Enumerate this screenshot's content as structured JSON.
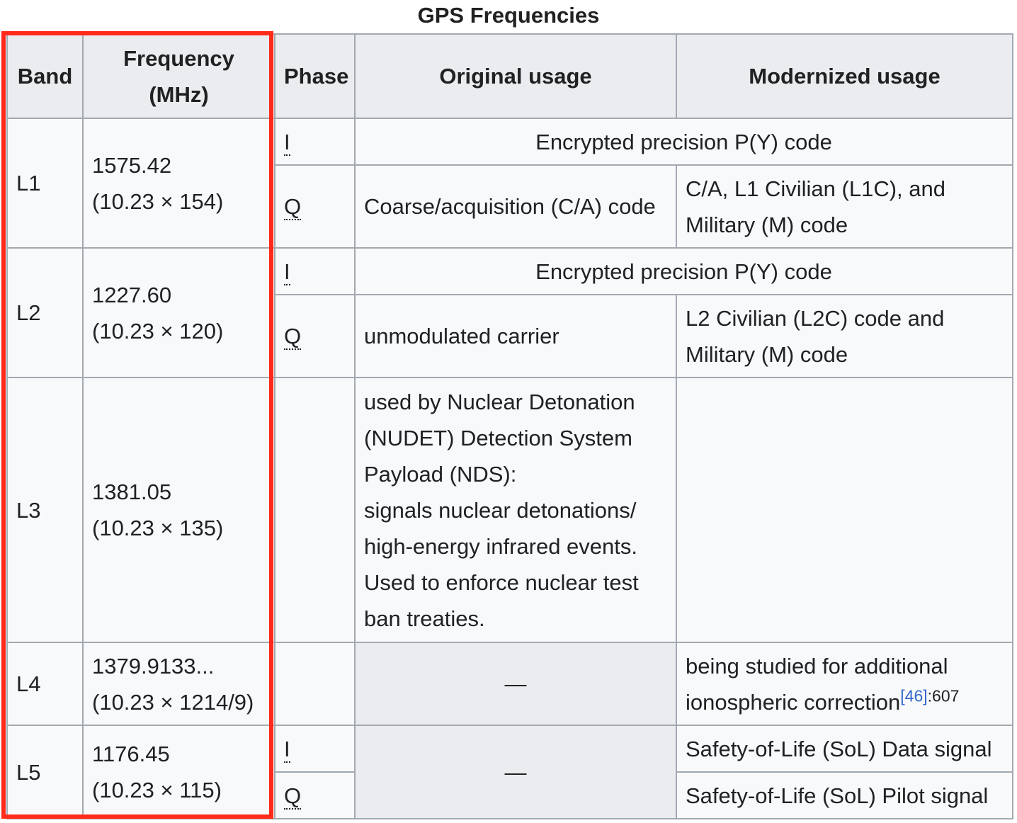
{
  "caption": "GPS Frequencies",
  "headers": {
    "band": "Band",
    "frequency": "Frequency (MHz)",
    "phase": "Phase",
    "original": "Original usage",
    "modernized": "Modernized usage"
  },
  "rows": {
    "l1": {
      "band": "L1",
      "freq_value": "1575.42",
      "freq_formula": "(10.23 × 154)",
      "phase_i": "I",
      "phase_q": "Q",
      "i_usage": "Encrypted precision P(Y) code",
      "q_original": "Coarse/acquisition (C/A) code",
      "q_modernized": "C/A, L1 Civilian (L1C), and Military (M) code"
    },
    "l2": {
      "band": "L2",
      "freq_value": "1227.60",
      "freq_formula": "(10.23 × 120)",
      "phase_i": "I",
      "phase_q": "Q",
      "i_usage": "Encrypted precision P(Y) code",
      "q_original": "unmodulated carrier",
      "q_modernized": "L2 Civilian (L2C) code and Military (M) code"
    },
    "l3": {
      "band": "L3",
      "freq_value": "1381.05",
      "freq_formula": "(10.23 × 135)",
      "original_line1": "used by Nuclear Detonation (NUDET) Detection System Payload (NDS):",
      "original_line2": "signals nuclear detonations/ high-energy infrared events.",
      "original_line3": "Used to enforce nuclear test ban treaties."
    },
    "l4": {
      "band": "L4",
      "freq_value": "1379.9133...",
      "freq_formula": "(10.23 × 1214/9)",
      "original": "—",
      "modernized": "being studied for additional ionospheric correction",
      "ref": "[46]",
      "page": ":607"
    },
    "l5": {
      "band": "L5",
      "freq_value": "1176.45",
      "freq_formula": "(10.23 × 115)",
      "phase_i": "I",
      "phase_q": "Q",
      "original": "—",
      "i_modernized": "Safety-of-Life (SoL) Data signal",
      "q_modernized": "Safety-of-Life (SoL) Pilot signal"
    }
  },
  "highlight": {
    "color": "#ff2a1a"
  }
}
